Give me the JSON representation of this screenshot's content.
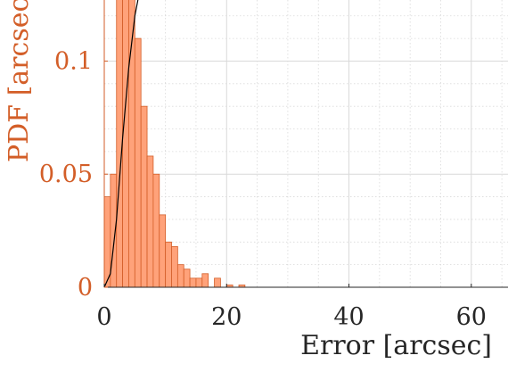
{
  "chart_data": {
    "type": "bar",
    "x_range": [
      0,
      66
    ],
    "y_range": [
      0,
      0.127
    ],
    "grid": true,
    "minor_grid": true,
    "xlabel": "Error [arcsec]",
    "ylabel": "PDF [arcsec",
    "x_ticks": [
      "0",
      "20",
      "40",
      "60"
    ],
    "y_ticks": [
      "0",
      "0.05",
      "0.1"
    ],
    "histogram": {
      "bin_width": 1,
      "bin_starts": [
        0,
        1,
        2,
        3,
        4,
        5,
        6,
        7,
        8,
        9,
        10,
        11,
        12,
        13,
        14,
        15,
        16,
        17,
        18,
        19,
        20,
        21,
        22,
        23
      ],
      "values": [
        0.04,
        0.05,
        0.13,
        0.13,
        0.13,
        0.11,
        0.08,
        0.058,
        0.05,
        0.032,
        0.02,
        0.018,
        0.01,
        0.008,
        0.004,
        0.004,
        0.006,
        0.0,
        0.004,
        0.0,
        0.001,
        0.0,
        0.001,
        0.0
      ],
      "fill_color": "#FFA27A",
      "edge_color": "#D35E28"
    },
    "cdf_line": {
      "x": [
        0,
        1,
        2,
        3,
        4,
        5,
        5.5
      ],
      "y": [
        0,
        0.006,
        0.03,
        0.066,
        0.097,
        0.12,
        0.127
      ],
      "color": "#000000"
    },
    "colors": {
      "y_axis_text": "#D35E28",
      "x_axis_text": "#262626",
      "grid": "#d9d9d9"
    }
  }
}
